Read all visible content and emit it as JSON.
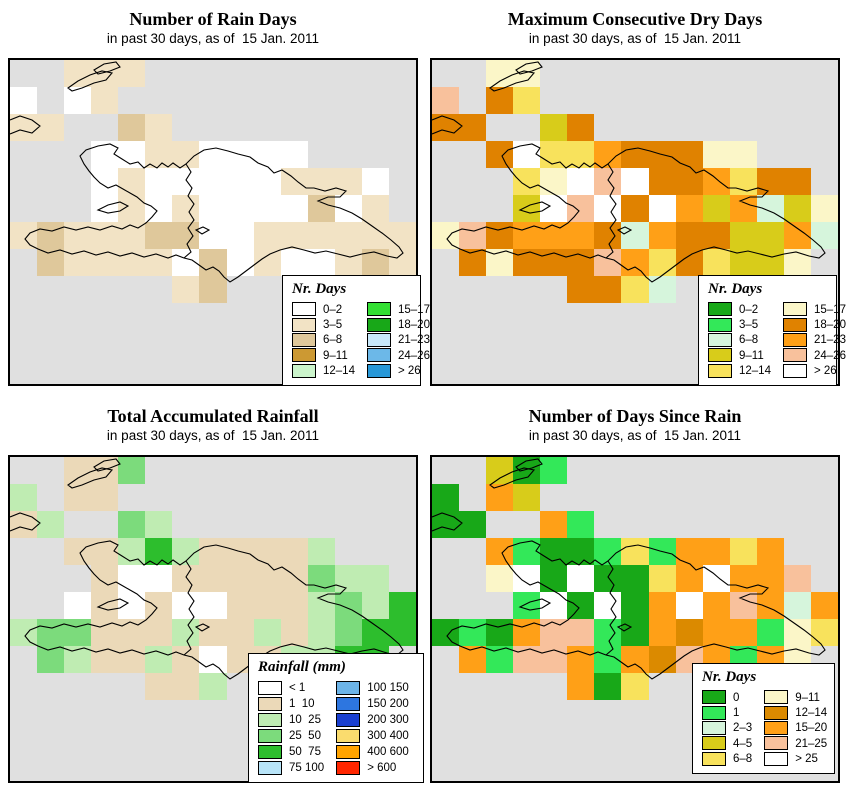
{
  "page": {
    "background": "#ffffff",
    "panel_background": "#e0e0e0",
    "outline_color": "#000000"
  },
  "panels": [
    {
      "id": "rain-days",
      "title": "Number of Rain Days",
      "subtitle": "in past 30 days, as of  15 Jan. 2011",
      "legend": {
        "title": "Nr. Days",
        "col1": [
          {
            "label": "0–2",
            "color": "#ffffff"
          },
          {
            "label": "3–5",
            "color": "#f2e3c5"
          },
          {
            "label": "6–8",
            "color": "#dfc89b"
          },
          {
            "label": "9–11",
            "color": "#cc9933"
          },
          {
            "label": "12–14",
            "color": "#ccf5cc"
          }
        ],
        "col2": [
          {
            "label": "15–17",
            "color": "#33e033"
          },
          {
            "label": "18–20",
            "color": "#18a818"
          },
          {
            "label": "21–23",
            "color": "#c8e8fa"
          },
          {
            "label": "24–26",
            "color": "#6cb8e8"
          },
          {
            "label": "> 26",
            "color": "#2898d8"
          }
        ]
      },
      "palette": {
        "w": "#ffffff",
        "a": "#f2e3c5",
        "b": "#dfc89b",
        "c": "#cc9933",
        "p": "#ccf5cc"
      },
      "grid": [
        "..aaa..........",
        "w.wa...........",
        "aa..ba.........",
        "...wwaawwww....",
        "...wawwwwwaaaw.",
        "...wawawwwwbwa.",
        "abaaabbwwaaaaaa",
        ".baaaawbwawwaba",
        "......ab.......",
        "...............",
        "...............",
        "..............."
      ]
    },
    {
      "id": "consecutive-dry-days",
      "title": "Maximum Consecutive Dry Days",
      "subtitle": "in past 30 days, as of  15 Jan. 2011",
      "legend": {
        "title": "Nr. Days",
        "col1": [
          {
            "label": "0–2",
            "color": "#18a818"
          },
          {
            "label": "3–5",
            "color": "#33e859"
          },
          {
            "label": "6–8",
            "color": "#d6f5dc"
          },
          {
            "label": "9–11",
            "color": "#d8cc1a"
          },
          {
            "label": "12–14",
            "color": "#f8e25c"
          }
        ],
        "col2": [
          {
            "label": "15–17",
            "color": "#fbf6c8"
          },
          {
            "label": "18–20",
            "color": "#e08200"
          },
          {
            "label": "21–23",
            "color": "#ffa017"
          },
          {
            "label": "24–26",
            "color": "#f8c19c"
          },
          {
            "label": "> 26",
            "color": "#ffffff"
          }
        ]
      },
      "palette": {
        "w": "#ffffff",
        "G": "#18a818",
        "g": "#33e859",
        "p": "#d6f5dc",
        "o": "#d8cc1a",
        "y": "#f8e25c",
        "Y": "#fbf6c8",
        "D": "#e08200",
        "O": "#ffa017",
        "s": "#f8c19c"
      },
      "grid": [
        "..YY...........",
        "s.Dy...........",
        "DD..oD.........",
        "..DwyyODDDYY...",
        "...yYwswDDOyDD.",
        "...owswDwOoOpoY",
        "YsDOOODpODDooOp",
        ".DYDDDsOyDyooY.",
        ".....DDyp......",
        "...............",
        "...............",
        "..............."
      ]
    },
    {
      "id": "total-accumulated-rainfall",
      "title": "Total Accumulated Rainfall",
      "subtitle": "in past 30 days, as of  15 Jan. 2011",
      "legend": {
        "title": "Rainfall (mm)",
        "col1": [
          {
            "label": "< 1",
            "color": "#ffffff"
          },
          {
            "label": "1  10",
            "color": "#ebd9b8"
          },
          {
            "label": "10  25",
            "color": "#bfecb2"
          },
          {
            "label": "25  50",
            "color": "#7cdb7c"
          },
          {
            "label": "50  75",
            "color": "#2dbe2d"
          },
          {
            "label": "75 100",
            "color": "#b8e4f8"
          }
        ],
        "col2": [
          {
            "label": "100 150",
            "color": "#6cb4e8"
          },
          {
            "label": "150 200",
            "color": "#2d76e0"
          },
          {
            "label": "200 300",
            "color": "#1a3fd0"
          },
          {
            "label": "300 400",
            "color": "#fadc6e"
          },
          {
            "label": "400 600",
            "color": "#ffa300"
          },
          {
            "label": "> 600",
            "color": "#ff2600"
          }
        ]
      },
      "palette": {
        "w": "#ffffff",
        "t": "#ebd9b8",
        "p": "#bfecb2",
        "m": "#7cdb7c",
        "G": "#2dbe2d"
      },
      "grid": [
        "..ttm..........",
        "p.tt...........",
        "tp..mp.........",
        "..ttpGpttttp...",
        "...twwtttttmpp.",
        "..wtwtwwtttpmpG",
        "pmmtttpttptpmGG",
        ".mpttptwttppGG.",
        ".....ttp.......",
        "...............",
        "...............",
        "..............."
      ]
    },
    {
      "id": "days-since-rain",
      "title": "Number of Days Since Rain",
      "subtitle": "in past 30 days, as of  15 Jan. 2011",
      "legend": {
        "title": "Nr. Days",
        "col1": [
          {
            "label": "0",
            "color": "#18a818"
          },
          {
            "label": "1",
            "color": "#33e859"
          },
          {
            "label": "2–3",
            "color": "#d6f5dc"
          },
          {
            "label": "4–5",
            "color": "#d8cc1a"
          },
          {
            "label": "6–8",
            "color": "#f8e25c"
          }
        ],
        "col2": [
          {
            "label": "9–11",
            "color": "#fbf6c8"
          },
          {
            "label": "12–14",
            "color": "#db8a00"
          },
          {
            "label": "15–20",
            "color": "#ffa017"
          },
          {
            "label": "21–25",
            "color": "#f8c19c"
          },
          {
            "label": "> 25",
            "color": "#ffffff"
          }
        ]
      },
      "palette": {
        "w": "#ffffff",
        "G": "#18a818",
        "g": "#33e859",
        "p": "#d6f5dc",
        "o": "#d8cc1a",
        "y": "#f8e25c",
        "Y": "#fbf6c8",
        "B": "#db8a00",
        "O": "#ffa017",
        "s": "#f8c19c"
      },
      "grid": [
        "..oGg..........",
        "G.Oo...........",
        "GG..Og.........",
        "..OgGGgygOOyO..",
        "..YwGwGGyOwOOs.",
        "...gwGwGOwOsOpO",
        "GgGOssgGOBOOgYy",
        ".OgssOgOBsOgOY.",
        ".....OGy.......",
        "...............",
        "...............",
        "..............."
      ]
    }
  ]
}
